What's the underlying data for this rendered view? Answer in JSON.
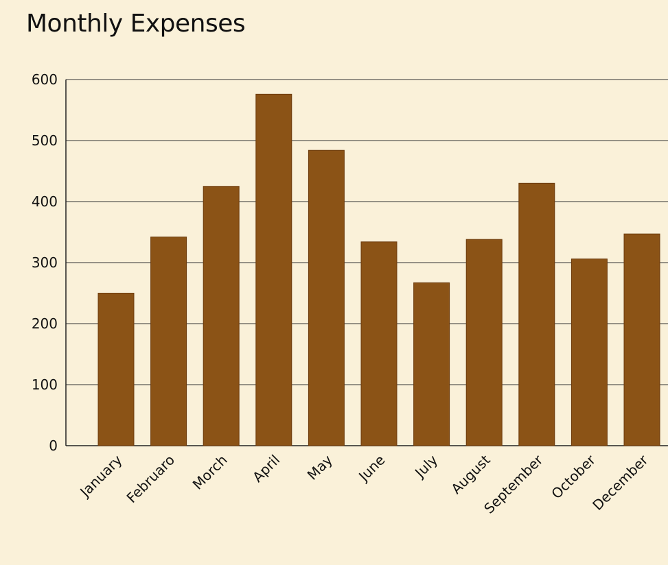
{
  "chart_data": {
    "type": "bar",
    "title": "Monthly Expenses",
    "xlabel": "",
    "ylabel": "",
    "categories": [
      "January",
      "Februaro",
      "Morch",
      "April",
      "May",
      "June",
      "July",
      "August",
      "September",
      "October",
      "December"
    ],
    "values": [
      250,
      342,
      425,
      576,
      484,
      334,
      267,
      338,
      430,
      306,
      347
    ],
    "ylim": [
      0,
      600
    ],
    "yticks": [
      0,
      100,
      200,
      300,
      400,
      500,
      600
    ],
    "grid": true,
    "legend": "none",
    "colors": {
      "bar": "#8B5316",
      "bar_edge": "#6B3A0C",
      "grid": "#333333",
      "background": "#FAF1D9"
    }
  }
}
